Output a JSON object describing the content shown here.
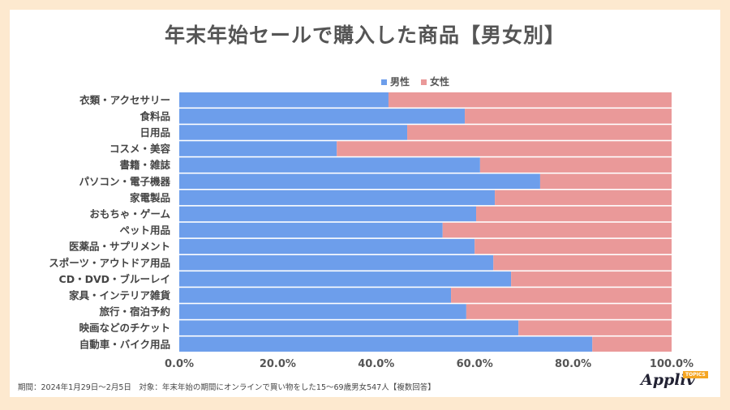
{
  "chart_data": {
    "type": "bar",
    "orientation": "horizontal",
    "stacked": "100%",
    "title": "年末年始セールで購入した商品【男女別】",
    "categories": [
      "衣類・アクセサリー",
      "食料品",
      "日用品",
      "コスメ・美容",
      "書籍・雑誌",
      "パソコン・電子機器",
      "家電製品",
      "おもちゃ・ゲーム",
      "ペット用品",
      "医薬品・サプリメント",
      "スポーツ・アウトドア用品",
      "CD・DVD・ブルーレイ",
      "家具・インテリア雑貨",
      "旅行・宿泊予約",
      "映画などのチケット",
      "自動車・バイク用品"
    ],
    "series": [
      {
        "name": "男性",
        "color": "#6d9eeb",
        "values": [
          42.5,
          58.0,
          46.3,
          32.0,
          61.1,
          73.3,
          64.1,
          60.3,
          53.5,
          60.0,
          63.8,
          67.4,
          55.2,
          58.3,
          68.9,
          83.9
        ]
      },
      {
        "name": "女性",
        "color": "#ea9999",
        "values": [
          57.5,
          42.0,
          53.7,
          68.0,
          38.9,
          26.7,
          35.9,
          39.7,
          46.5,
          40.0,
          36.2,
          32.6,
          44.8,
          41.7,
          31.1,
          16.1
        ]
      }
    ],
    "xlim": [
      0,
      100
    ],
    "xticks": [
      "0.0%",
      "20.0%",
      "40.0%",
      "60.0%",
      "80.0%",
      "100.0%"
    ],
    "legend": "top-right",
    "grid": false
  },
  "footer": "期間：2024年1月29日～2月5日　対象：年末年始の期間にオンラインで買い物をした15～69歳男女547人【複数回答】",
  "logo": {
    "text": "Appliv",
    "badge": "TOPICS"
  }
}
